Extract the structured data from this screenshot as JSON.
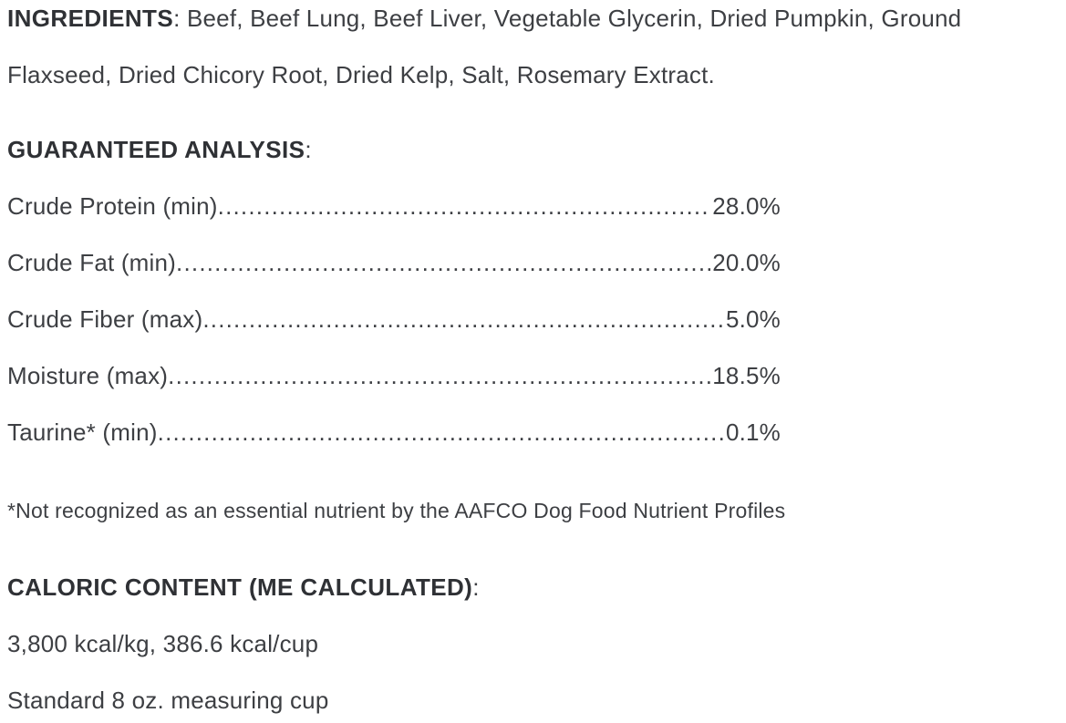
{
  "page": {
    "background": "#ffffff",
    "text_color": "#3d3f43",
    "heading_color": "#2f3135"
  },
  "ingredients": {
    "heading": "INGREDIENTS",
    "separator": ": ",
    "list": "Beef, Beef Lung, Beef Liver, Vegetable Glycerin, Dried Pumpkin, Ground Flaxseed, Dried Chicory Root, Dried Kelp, Salt, Rosemary Extract."
  },
  "guaranteed_analysis": {
    "heading": "GUARANTEED ANALYSIS",
    "colon": ":",
    "leader_dots": "..............................................................................................................................",
    "rows": [
      {
        "label": "Crude Protein (min)",
        "value": "28.0%"
      },
      {
        "label": "Crude Fat (min)",
        "value": "20.0%"
      },
      {
        "label": "Crude Fiber (max)",
        "value": "5.0%"
      },
      {
        "label": "Moisture (max)",
        "value": "18.5%"
      },
      {
        "label": "Taurine* (min)",
        "value": "0.1%"
      }
    ],
    "footnote": "*Not recognized as an essential nutrient by the AAFCO Dog Food Nutrient Profiles"
  },
  "caloric_content": {
    "heading": "CALORIC CONTENT (ME CALCULATED)",
    "colon": ":",
    "energy_line": "3,800 kcal/kg, 386.6 kcal/cup",
    "cup_line": "Standard 8 oz. measuring cup"
  }
}
